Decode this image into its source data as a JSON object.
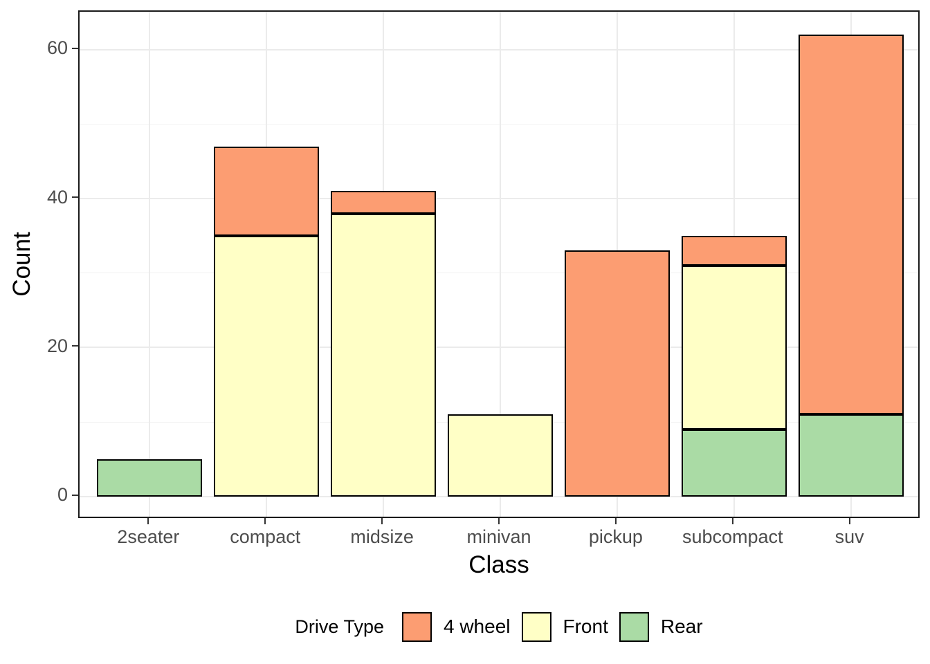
{
  "chart_data": {
    "type": "bar",
    "stacked": true,
    "title": "",
    "xlabel": "Class",
    "ylabel": "Count",
    "legend_title": "Drive Type",
    "legend_position": "bottom",
    "grid": true,
    "categories": [
      "2seater",
      "compact",
      "midsize",
      "minivan",
      "pickup",
      "subcompact",
      "suv"
    ],
    "series": [
      {
        "name": "4 wheel",
        "color": "#FC9D72",
        "values": [
          0,
          12,
          3,
          0,
          33,
          4,
          51
        ]
      },
      {
        "name": "Front",
        "color": "#FFFFC6",
        "values": [
          0,
          35,
          38,
          11,
          0,
          22,
          0
        ]
      },
      {
        "name": "Rear",
        "color": "#AADBA5",
        "values": [
          5,
          0,
          0,
          0,
          0,
          9,
          11
        ]
      }
    ],
    "stack_order_bottom_to_top": [
      "Rear",
      "Front",
      "4 wheel"
    ],
    "totals": [
      5,
      47,
      41,
      11,
      33,
      35,
      62
    ],
    "y_ticks": [
      0,
      20,
      40,
      60
    ],
    "y_minor_ticks": [
      10,
      30,
      50
    ],
    "ylim": [
      -3.1,
      65.1
    ],
    "bar_border_color": "#000000",
    "panel_border_color": "#1a1a1a",
    "major_grid_color": "#ebebeb",
    "minor_grid_color": "#f2f2f2",
    "tick_label_color": "#4d4d4d",
    "axis_title_color": "#000000"
  }
}
